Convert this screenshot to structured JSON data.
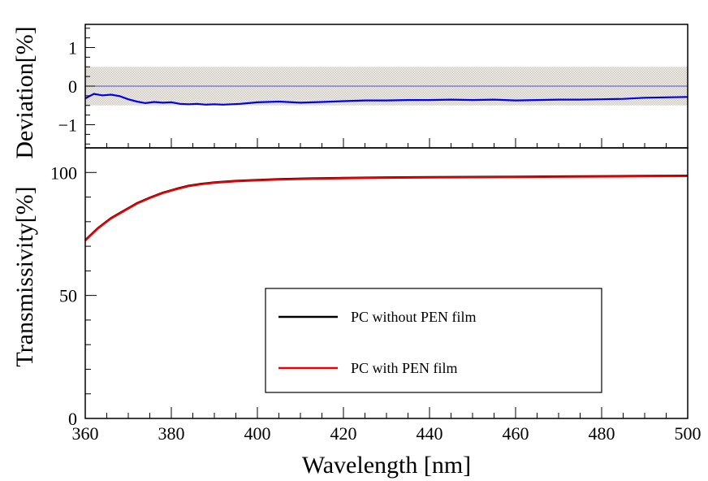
{
  "chart_data": [
    {
      "type": "line",
      "panel": "deviation",
      "ylabel": "Deviation[%]",
      "xlim": [
        360,
        500
      ],
      "ylim": [
        -1.6,
        1.6
      ],
      "yticks": [
        1,
        0,
        -1
      ],
      "ytick_labels": [
        "1",
        "0",
        "−1"
      ],
      "uncertainty_band": [
        -0.5,
        0.5
      ],
      "reference_line": 0,
      "series": [
        {
          "color": "#0000ee",
          "x": [
            360,
            362,
            364,
            366,
            368,
            370,
            372,
            374,
            376,
            378,
            380,
            382,
            384,
            386,
            388,
            390,
            392,
            394,
            396,
            398,
            400,
            405,
            410,
            415,
            420,
            425,
            430,
            435,
            440,
            445,
            450,
            455,
            460,
            465,
            470,
            475,
            480,
            485,
            490,
            495,
            500
          ],
          "y": [
            -0.32,
            -0.2,
            -0.24,
            -0.22,
            -0.26,
            -0.34,
            -0.4,
            -0.44,
            -0.41,
            -0.43,
            -0.42,
            -0.46,
            -0.47,
            -0.46,
            -0.48,
            -0.47,
            -0.48,
            -0.47,
            -0.46,
            -0.44,
            -0.42,
            -0.4,
            -0.43,
            -0.41,
            -0.39,
            -0.37,
            -0.37,
            -0.36,
            -0.36,
            -0.35,
            -0.36,
            -0.35,
            -0.37,
            -0.36,
            -0.35,
            -0.35,
            -0.34,
            -0.33,
            -0.3,
            -0.29,
            -0.28
          ]
        }
      ]
    },
    {
      "type": "line",
      "panel": "transmissivity",
      "xlabel": "Wavelength [nm]",
      "ylabel": "Transmissivity[%]",
      "xlim": [
        360,
        500
      ],
      "ylim": [
        0,
        110
      ],
      "xticks": [
        360,
        380,
        400,
        420,
        440,
        460,
        480,
        500
      ],
      "yticks": [
        0,
        50,
        100
      ],
      "legend_position": "center-right",
      "series": [
        {
          "name": "PC without PEN film",
          "color": "#000000",
          "x": [
            360,
            363,
            366,
            369,
            372,
            375,
            378,
            381,
            384,
            387,
            390,
            395,
            400,
            405,
            410,
            420,
            430,
            440,
            450,
            460,
            470,
            480,
            490,
            500
          ],
          "y": [
            72.5,
            77.5,
            81.5,
            84.5,
            87.5,
            89.8,
            91.8,
            93.3,
            94.6,
            95.4,
            96,
            96.6,
            97,
            97.3,
            97.5,
            97.8,
            98,
            98.1,
            98.2,
            98.3,
            98.4,
            98.5,
            98.6,
            98.7
          ]
        },
        {
          "name": "PC with PEN film",
          "color": "#ee0000",
          "x": [
            360,
            363,
            366,
            369,
            372,
            375,
            378,
            381,
            384,
            387,
            390,
            395,
            400,
            405,
            410,
            420,
            430,
            440,
            450,
            460,
            470,
            480,
            490,
            500
          ],
          "y": [
            72.3,
            77.3,
            81.3,
            84.3,
            87.3,
            89.6,
            91.6,
            93.1,
            94.4,
            95.2,
            95.8,
            96.4,
            96.8,
            97.1,
            97.3,
            97.6,
            97.8,
            97.9,
            98,
            98.1,
            98.2,
            98.3,
            98.4,
            98.5
          ]
        }
      ]
    }
  ]
}
